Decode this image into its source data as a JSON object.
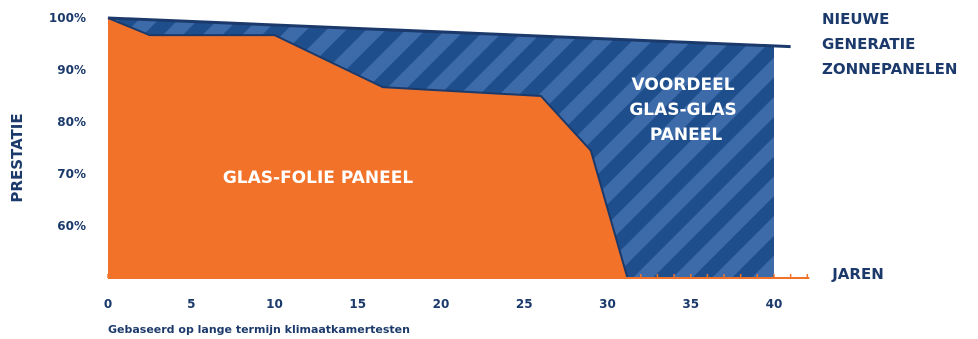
{
  "colors": {
    "navy": "#1b3a6b",
    "blue": "#1e4f8c",
    "stripe": "#3d6aa8",
    "orange": "#f2722a",
    "white": "#ffffff"
  },
  "chart_data": {
    "type": "area",
    "ylabel": "PRESTATIE",
    "xlabel": "JAREN",
    "xlim": [
      0,
      42
    ],
    "ylim": [
      50,
      100
    ],
    "x_ticks": [
      0,
      5,
      10,
      15,
      20,
      25,
      30,
      35,
      40
    ],
    "y_ticks": [
      60,
      70,
      80,
      90,
      100
    ],
    "y_tick_labels": [
      "60%",
      "70%",
      "80%",
      "90%",
      "100%"
    ],
    "series": [
      {
        "name": "NIEUWE GENERATIE ZONNEPANELEN",
        "x": [
          0,
          41
        ],
        "y": [
          100,
          94.5
        ]
      },
      {
        "name": "GLAS-FOLIE PANEEL",
        "x": [
          0,
          2.5,
          10,
          16.5,
          26,
          29,
          31.2,
          40
        ],
        "y": [
          100,
          96.7,
          96.7,
          86.7,
          85,
          74.5,
          50,
          50
        ]
      }
    ],
    "annotations": {
      "series_label_top": [
        "NIEUWE",
        "GENERATIE",
        "ZONNEPANELEN"
      ],
      "advantage_label": [
        "VOORDEEL",
        "GLAS-GLAS",
        "PANEEL"
      ],
      "lower_area_label": "GLAS-FOLIE PANEEL"
    },
    "footnote": "Gebaseerd op lange termijn klimaatkamertesten"
  }
}
